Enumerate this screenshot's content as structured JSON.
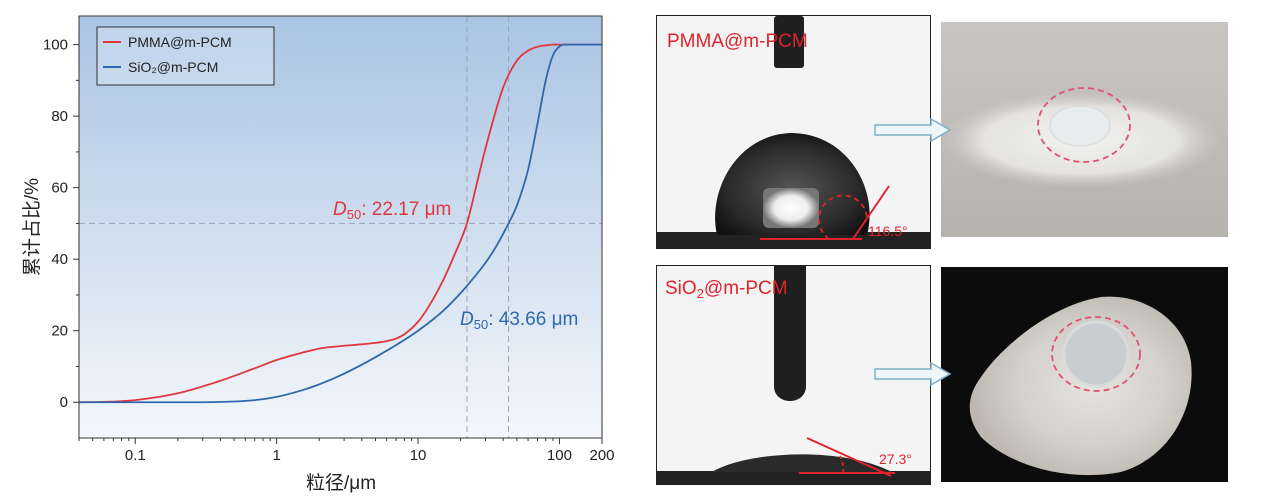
{
  "chart_data": {
    "type": "line",
    "xscale": "log",
    "xlabel": "粒径/μm",
    "ylabel": "累计占比/%",
    "xlim": [
      0.04,
      200
    ],
    "ylim": [
      -10,
      108
    ],
    "x_ticks": [
      0.1,
      1,
      10,
      100,
      200
    ],
    "x_tick_labels": [
      "0.1",
      "1",
      "10",
      "100",
      "200"
    ],
    "y_ticks": [
      0,
      20,
      40,
      60,
      80,
      100
    ],
    "y_tick_labels": [
      "0",
      "20",
      "40",
      "60",
      "80",
      "100"
    ],
    "background_gradient": [
      "#f4f7fb",
      "#a9c4e3"
    ],
    "legend": {
      "placement": "top-left"
    },
    "series": [
      {
        "name": "PMMA@m-PCM",
        "color": "#e0363d",
        "x": [
          0.04,
          0.06,
          0.1,
          0.2,
          0.4,
          0.7,
          1,
          1.5,
          2,
          3,
          4,
          5,
          6,
          7,
          8,
          10,
          12,
          15,
          18,
          22.17,
          26,
          30,
          40,
          50,
          60,
          70,
          80,
          90,
          100,
          120,
          200
        ],
        "y": [
          0,
          0.1,
          0.6,
          2.5,
          6,
          9.5,
          11.8,
          13.8,
          15,
          15.8,
          16.2,
          16.6,
          17.1,
          17.8,
          19,
          22.5,
          27,
          34,
          41,
          50,
          61,
          71,
          88,
          95.5,
          98.3,
          99.4,
          99.8,
          100,
          100,
          100,
          100
        ]
      },
      {
        "name": "SiO₂@m-PCM",
        "color": "#2f68ad",
        "x": [
          0.04,
          0.1,
          0.3,
          0.5,
          0.7,
          1,
          1.5,
          2,
          3,
          4,
          5,
          7,
          10,
          15,
          20,
          25,
          30,
          35,
          43.66,
          50,
          60,
          70,
          80,
          90,
          100,
          110,
          120,
          200
        ],
        "y": [
          0,
          0,
          0,
          0.2,
          0.6,
          1.5,
          3.3,
          5,
          8,
          10.5,
          12.6,
          16,
          20,
          25.5,
          30.5,
          35,
          39,
          43,
          50,
          55,
          65,
          78,
          90,
          97,
          99.5,
          100,
          100,
          100
        ]
      }
    ],
    "annotations": [
      {
        "series": "PMMA@m-PCM",
        "symbol": "D",
        "subscript": "50",
        "text": ": 22.17 μm",
        "x": 22.17,
        "y": 50
      },
      {
        "series": "SiO₂@m-PCM",
        "symbol": "D",
        "subscript": "50",
        "text": ": 43.66 μm",
        "x": 43.66,
        "y": 50
      }
    ],
    "reference_lines": {
      "horizontal_y": 50,
      "vertical_x": [
        22.17,
        43.66
      ]
    }
  },
  "photos": {
    "top_label": "PMMA@m-PCM",
    "top_angle": "116.5°",
    "bottom_label_prefix": "SiO",
    "bottom_label_sub": "2",
    "bottom_label_suffix": "@m-PCM",
    "bottom_angle": "27.3°"
  }
}
